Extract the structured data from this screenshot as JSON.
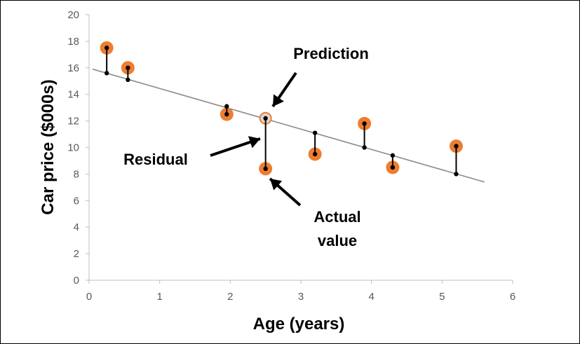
{
  "chart_data": {
    "type": "scatter",
    "xlabel": "Age (years)",
    "ylabel": "Car price ($000s)",
    "xlim": [
      0,
      6
    ],
    "ylim": [
      0,
      20
    ],
    "x_ticks": [
      0,
      1,
      2,
      3,
      4,
      5,
      6
    ],
    "y_ticks": [
      0,
      2,
      4,
      6,
      8,
      10,
      12,
      14,
      16,
      18,
      20
    ],
    "grid": false,
    "points": [
      {
        "x": 0.25,
        "y": 17.5,
        "predicted": 15.6
      },
      {
        "x": 0.55,
        "y": 16.0,
        "predicted": 15.1
      },
      {
        "x": 1.95,
        "y": 12.5,
        "predicted": 13.1
      },
      {
        "x": 2.5,
        "y": 8.4,
        "predicted": 12.2
      },
      {
        "x": 3.2,
        "y": 9.5,
        "predicted": 11.1
      },
      {
        "x": 3.9,
        "y": 11.8,
        "predicted": 10.0
      },
      {
        "x": 4.3,
        "y": 8.5,
        "predicted": 9.4
      },
      {
        "x": 5.2,
        "y": 10.1,
        "predicted": 8.0
      }
    ],
    "regression_line": {
      "x": [
        0.05,
        5.6
      ],
      "y": [
        15.9,
        7.4
      ]
    },
    "highlighted_prediction": {
      "x": 2.5,
      "y": 12.2
    },
    "annotations": {
      "prediction": "Prediction",
      "residual": "Residual",
      "actual_line1": "Actual",
      "actual_line2": "value"
    },
    "colors": {
      "point": "#ED7D31",
      "line": "#8C8C8C",
      "axis": "#BFBFBF",
      "prediction_point": "#D9D9D9"
    }
  }
}
